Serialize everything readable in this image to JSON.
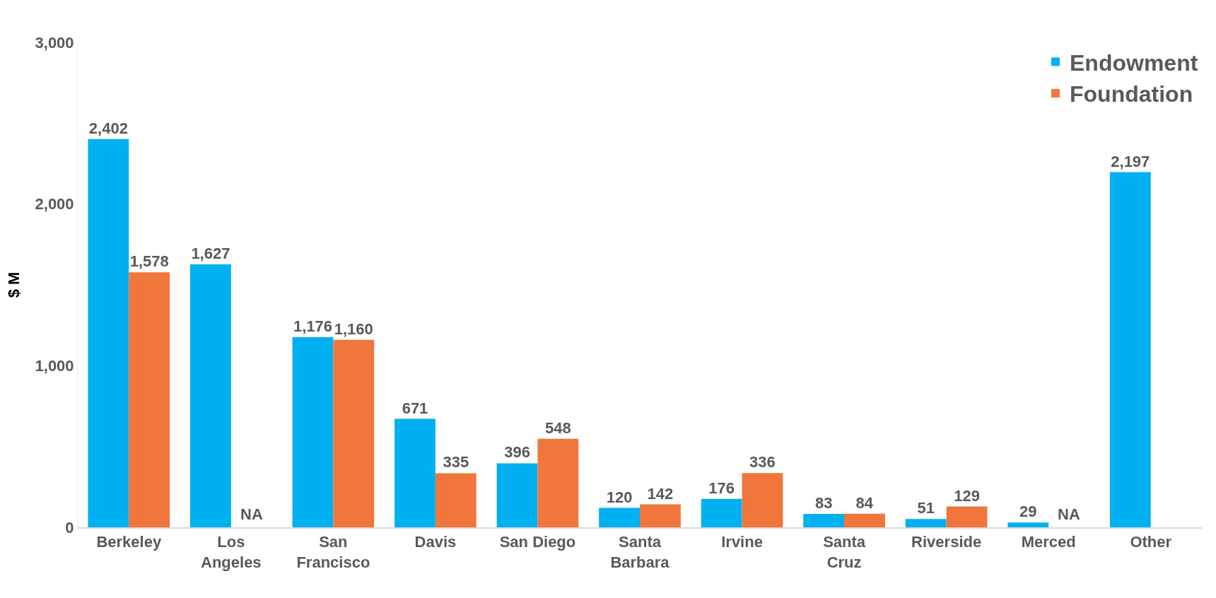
{
  "chart_data": {
    "type": "bar",
    "ylabel": "$ M",
    "categories": [
      "Berkeley",
      "Los Angeles",
      "San Francisco",
      "Davis",
      "San Diego",
      "Santa Barbara",
      "Irvine",
      "Santa Cruz",
      "Riverside",
      "Merced",
      "Other"
    ],
    "series": [
      {
        "name": "Endowment",
        "color": "#00b0f0",
        "values": [
          2402,
          1627,
          1176,
          671,
          396,
          120,
          176,
          83,
          51,
          29,
          2197
        ],
        "value_labels": [
          "2,402",
          "1,627",
          "1,176",
          "671",
          "396",
          "120",
          "176",
          "83",
          "51",
          "29",
          "2,197"
        ]
      },
      {
        "name": "Foundation",
        "color": "#f0763b",
        "values": [
          1578,
          null,
          1160,
          335,
          548,
          142,
          336,
          84,
          129,
          null,
          null
        ],
        "value_labels": [
          "1,578",
          "NA",
          "1,160",
          "335",
          "548",
          "142",
          "336",
          "84",
          "129",
          "NA",
          null
        ]
      }
    ],
    "ylim": [
      0,
      3000
    ],
    "yticks": [
      0,
      {
        "value": 1000,
        "label": "1,000"
      },
      {
        "value": 2000,
        "label": "2,000"
      },
      {
        "value": 3000,
        "label": "3,000"
      }
    ],
    "legend": "top right"
  }
}
